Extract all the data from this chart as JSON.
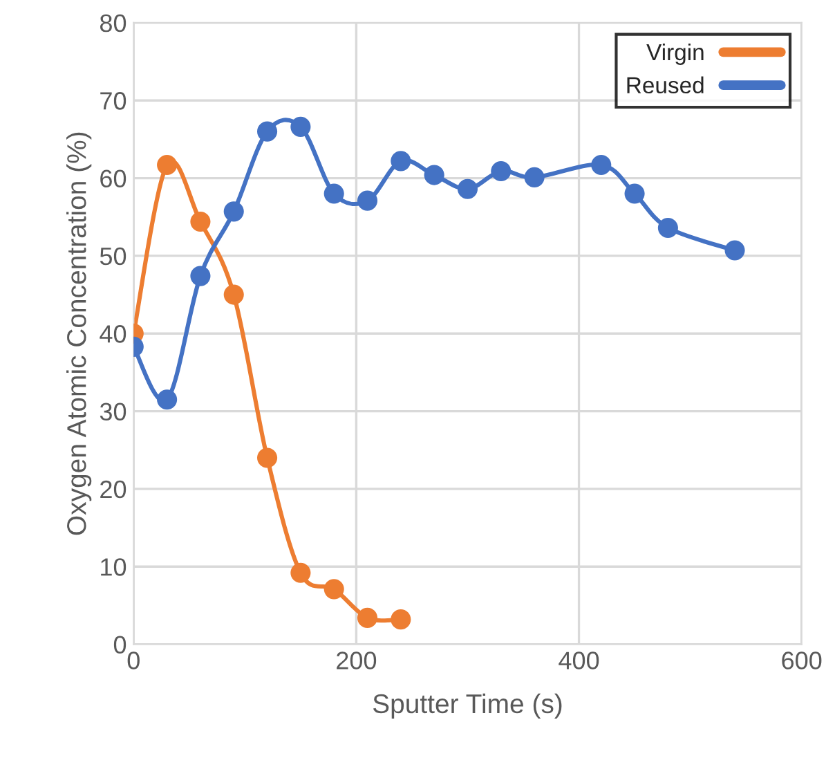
{
  "chart_data": {
    "type": "line",
    "xlabel": "Sputter Time (s)",
    "ylabel": "Oxygen Atomic Concentration (%)",
    "xlim": [
      0,
      600
    ],
    "xticks": [
      0,
      200,
      400,
      600
    ],
    "ylim": [
      0,
      80
    ],
    "yticks": [
      0,
      10,
      20,
      30,
      40,
      50,
      60,
      70,
      80
    ],
    "grid": true,
    "legend": "top right",
    "marker": "circle",
    "line_style": "solid",
    "series": [
      {
        "name": "Virgin",
        "color": "#ed7d31",
        "x": [
          0,
          30,
          60,
          90,
          120,
          150,
          180,
          210,
          240
        ],
        "values": [
          40,
          61.7,
          54.4,
          45,
          24,
          9.2,
          7.1,
          3.4,
          3.2
        ]
      },
      {
        "name": "Reused",
        "color": "#4472c4",
        "x": [
          0,
          30,
          60,
          90,
          120,
          150,
          180,
          210,
          240,
          270,
          300,
          330,
          360,
          420,
          450,
          480,
          540
        ],
        "values": [
          38.3,
          31.5,
          47.4,
          55.7,
          66,
          66.6,
          58,
          57.1,
          62.2,
          60.4,
          58.6,
          60.9,
          60.1,
          61.7,
          58,
          53.6,
          50.7
        ]
      }
    ]
  }
}
